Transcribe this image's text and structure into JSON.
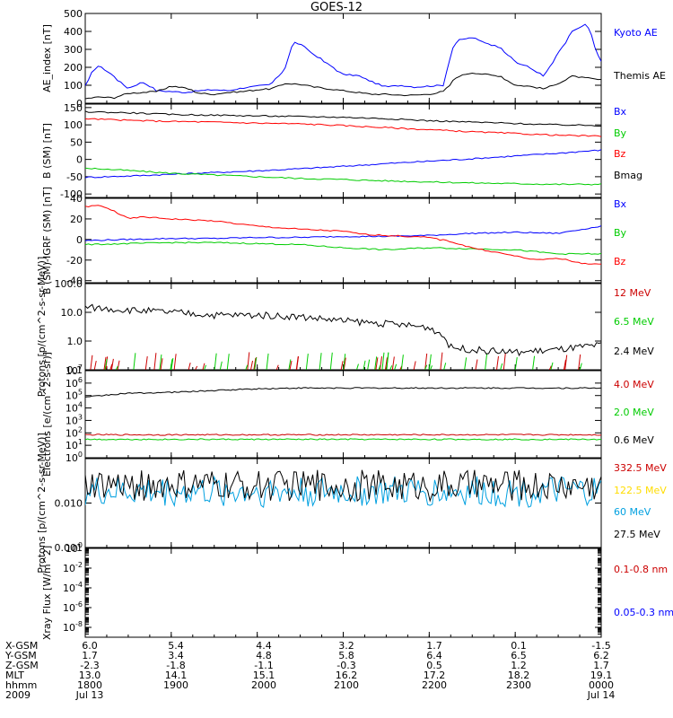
{
  "title": "GOES-12",
  "chart_data": [
    {
      "type": "line",
      "panel": "ae",
      "ylabel": "AE_index [nT]",
      "yscale": "linear",
      "ylim": [
        0,
        500
      ],
      "yticks": [
        "0",
        "100",
        "200",
        "300",
        "400",
        "500"
      ],
      "legend_placement": "right",
      "series": [
        {
          "name": "Kyoto AE",
          "color": "#0000ff",
          "x": [
            1800,
            1805,
            1810,
            1820,
            1830,
            1840,
            1850,
            1900,
            1910,
            1920,
            1930,
            1940,
            1950,
            2000,
            2010,
            2020,
            2025,
            2030,
            2040,
            2050,
            2100,
            2110,
            2120,
            2130,
            2140,
            2150,
            2200,
            2210,
            2215,
            2220,
            2230,
            2240,
            2250,
            2300,
            2310,
            2320,
            2330,
            2340,
            2350,
            2400
          ],
          "y": [
            95,
            175,
            210,
            150,
            80,
            120,
            70,
            65,
            60,
            70,
            75,
            70,
            85,
            95,
            105,
            200,
            340,
            330,
            270,
            215,
            160,
            155,
            120,
            90,
            100,
            90,
            95,
            100,
            280,
            350,
            365,
            335,
            310,
            230,
            200,
            150,
            275,
            400,
            440,
            230
          ]
        },
        {
          "name": "Themis AE",
          "color": "#000000",
          "x": [
            1800,
            1810,
            1820,
            1830,
            1840,
            1850,
            1900,
            1910,
            1920,
            1930,
            1940,
            1950,
            2000,
            2010,
            2020,
            2030,
            2040,
            2050,
            2100,
            2110,
            2120,
            2130,
            2140,
            2150,
            2200,
            2210,
            2220,
            2230,
            2240,
            2250,
            2300,
            2310,
            2320,
            2330,
            2340,
            2350,
            2400
          ],
          "y": [
            25,
            35,
            30,
            55,
            60,
            65,
            95,
            85,
            55,
            50,
            60,
            65,
            75,
            80,
            110,
            105,
            90,
            80,
            70,
            60,
            50,
            50,
            45,
            45,
            50,
            65,
            150,
            170,
            160,
            150,
            100,
            95,
            80,
            110,
            150,
            140,
            130
          ]
        }
      ]
    },
    {
      "type": "line",
      "panel": "b",
      "ylabel": "B (SM) [nT]",
      "yscale": "linear",
      "ylim": [
        -110,
        160
      ],
      "yticks": [
        "-100",
        "-50",
        "0",
        "50",
        "100",
        "150"
      ],
      "legend_placement": "right",
      "series": [
        {
          "name": "Bx",
          "color": "#0000ff",
          "x": [
            1800,
            1830,
            1900,
            1930,
            2000,
            2030,
            2100,
            2130,
            2200,
            2230,
            2300,
            2330,
            2400
          ],
          "y": [
            -52,
            -48,
            -43,
            -38,
            -33,
            -27,
            -20,
            -12,
            -5,
            2,
            10,
            18,
            27
          ]
        },
        {
          "name": "By",
          "color": "#00cc00",
          "x": [
            1800,
            1830,
            1900,
            1930,
            2000,
            2030,
            2100,
            2130,
            2200,
            2230,
            2300,
            2330,
            2400
          ],
          "y": [
            -25,
            -32,
            -40,
            -45,
            -50,
            -55,
            -58,
            -62,
            -65,
            -68,
            -70,
            -72,
            -72
          ]
        },
        {
          "name": "Bz",
          "color": "#ff0000",
          "x": [
            1800,
            1830,
            1900,
            1930,
            2000,
            2030,
            2100,
            2130,
            2200,
            2230,
            2300,
            2330,
            2400
          ],
          "y": [
            118,
            113,
            110,
            108,
            105,
            103,
            98,
            92,
            86,
            80,
            75,
            70,
            67
          ]
        },
        {
          "name": "Bmag",
          "color": "#000000",
          "x": [
            1800,
            1830,
            1900,
            1930,
            2000,
            2030,
            2100,
            2130,
            2200,
            2230,
            2300,
            2330,
            2400
          ],
          "y": [
            138,
            135,
            130,
            128,
            126,
            124,
            122,
            118,
            112,
            108,
            104,
            100,
            98
          ]
        }
      ]
    },
    {
      "type": "line",
      "panel": "db",
      "ylabel": "B (SM)-IGRF (SM) [nT]",
      "yscale": "linear",
      "ylim": [
        -42,
        40
      ],
      "yticks": [
        "-40",
        "-20",
        "0",
        "20",
        "40"
      ],
      "legend_placement": "right",
      "series": [
        {
          "name": "Bx",
          "color": "#0000ff",
          "x": [
            1800,
            1830,
            1900,
            1930,
            2000,
            2030,
            2100,
            2130,
            2200,
            2230,
            2300,
            2330,
            2400
          ],
          "y": [
            -1,
            0,
            1,
            1,
            2,
            2,
            3,
            3,
            4,
            6,
            7,
            6,
            13
          ]
        },
        {
          "name": "By",
          "color": "#00cc00",
          "x": [
            1800,
            1830,
            1900,
            1930,
            2000,
            2030,
            2100,
            2130,
            2200,
            2230,
            2300,
            2330,
            2400
          ],
          "y": [
            -5,
            -4,
            -3,
            -3,
            -4,
            -5,
            -8,
            -10,
            -8,
            -9,
            -10,
            -14,
            -14
          ]
        },
        {
          "name": "Bz",
          "color": "#ff0000",
          "x": [
            1800,
            1810,
            1820,
            1830,
            1840,
            1900,
            1930,
            2000,
            2030,
            2100,
            2115,
            2130,
            2200,
            2215,
            2230,
            2300,
            2315,
            2330,
            2345,
            2400
          ],
          "y": [
            32,
            33,
            28,
            20,
            22,
            20,
            18,
            13,
            10,
            8,
            5,
            4,
            2,
            -2,
            -8,
            -16,
            -20,
            -18,
            -23,
            -24
          ]
        }
      ]
    },
    {
      "type": "line",
      "panel": "protons-low",
      "ylabel": "Protons [p/(cm^2-s-sr-MeV)]",
      "yscale": "log",
      "ylim": [
        0.1,
        100.0
      ],
      "yticks": [
        "0.1",
        "1.0",
        "10.0",
        "100.0"
      ],
      "legend_placement": "right",
      "series": [
        {
          "name": "12 MeV",
          "color": "#cc0000",
          "x": [],
          "y": []
        },
        {
          "name": "6.5 MeV",
          "color": "#00cc00",
          "x": [],
          "y": []
        },
        {
          "name": "2.4 MeV",
          "color": "#000000",
          "x": [
            1800,
            1830,
            1900,
            1930,
            2000,
            2030,
            2100,
            2130,
            2200,
            2215,
            2230,
            2300,
            2330,
            2400
          ],
          "y": [
            15,
            12,
            10,
            8,
            8,
            7,
            5,
            4,
            3,
            0.6,
            0.5,
            0.4,
            0.5,
            0.7
          ]
        }
      ]
    },
    {
      "type": "line",
      "panel": "electrons",
      "ylabel": "Electrons [e/(cm^2-s-sr)]",
      "yscale": "log",
      "ylim": [
        1,
        10000000
      ],
      "yticks": [
        "10^0",
        "10^1",
        "10^2",
        "10^3",
        "10^4",
        "10^5",
        "10^6",
        "10^7"
      ],
      "legend_placement": "right",
      "series": [
        {
          "name": "4.0 MeV",
          "color": "#cc0000",
          "x": [
            1800,
            2000,
            2200,
            2400
          ],
          "y": [
            70,
            70,
            70,
            70
          ]
        },
        {
          "name": "2.0 MeV",
          "color": "#00cc00",
          "x": [
            1800,
            2000,
            2200,
            2400
          ],
          "y": [
            30,
            30,
            30,
            30
          ]
        },
        {
          "name": "0.6 MeV",
          "color": "#000000",
          "x": [
            1800,
            1830,
            1900,
            1930,
            2000,
            2030,
            2100,
            2200,
            2300,
            2400
          ],
          "y": [
            70000,
            150000,
            180000,
            250000,
            350000,
            400000,
            400000,
            400000,
            400000,
            400000
          ]
        }
      ]
    },
    {
      "type": "line",
      "panel": "protons-high",
      "ylabel": "Protons [p/(cm^2-s-sr-MeV)]",
      "yscale": "log",
      "ylim": [
        0.001,
        0.1
      ],
      "yticks": [
        "0.001",
        "0.010"
      ],
      "legend_placement": "right",
      "series": [
        {
          "name": "332.5 MeV",
          "color": "#cc0000",
          "x": [],
          "y": []
        },
        {
          "name": "122.5 MeV",
          "color": "#ffdd00",
          "x": [],
          "y": []
        },
        {
          "name": "60 MeV",
          "color": "#00a0e0",
          "x": [
            1800,
            2400
          ],
          "y": [
            0.018,
            0.018
          ]
        },
        {
          "name": "27.5 MeV",
          "color": "#000000",
          "x": [
            1800,
            2400
          ],
          "y": [
            0.025,
            0.025
          ]
        }
      ]
    },
    {
      "type": "line",
      "panel": "xray",
      "ylabel": "Xray Flux [W/m^2]",
      "yscale": "log",
      "ylim": [
        1e-09,
        1
      ],
      "yticks": [
        "10^0",
        "10^-2",
        "10^-4",
        "10^-6",
        "10^-8"
      ],
      "legend_placement": "right",
      "series": [
        {
          "name": "0.1-0.8 nm",
          "color": "#cc0000",
          "x": [],
          "y": []
        },
        {
          "name": "0.05-0.3 nm",
          "color": "#0000ff",
          "x": [],
          "y": []
        }
      ]
    }
  ],
  "ephemeris": {
    "labels": [
      "X-GSM",
      "Y-GSM",
      "Z-GSM",
      "MLT",
      "hhmm",
      "2009"
    ],
    "columns": [
      [
        "6.0",
        "1.7",
        "-2.3",
        "13.0",
        "1800",
        "Jul 13"
      ],
      [
        "5.4",
        "3.4",
        "-1.8",
        "14.1",
        "1900",
        ""
      ],
      [
        "4.4",
        "4.8",
        "-1.1",
        "15.1",
        "2000",
        ""
      ],
      [
        "3.2",
        "5.8",
        "-0.3",
        "16.2",
        "2100",
        ""
      ],
      [
        "1.7",
        "6.4",
        "0.5",
        "17.2",
        "2200",
        ""
      ],
      [
        "0.1",
        "6.5",
        "1.2",
        "18.2",
        "2300",
        ""
      ],
      [
        "-1.5",
        "6.2",
        "1.7",
        "19.1",
        "0000",
        "Jul 14"
      ]
    ]
  }
}
